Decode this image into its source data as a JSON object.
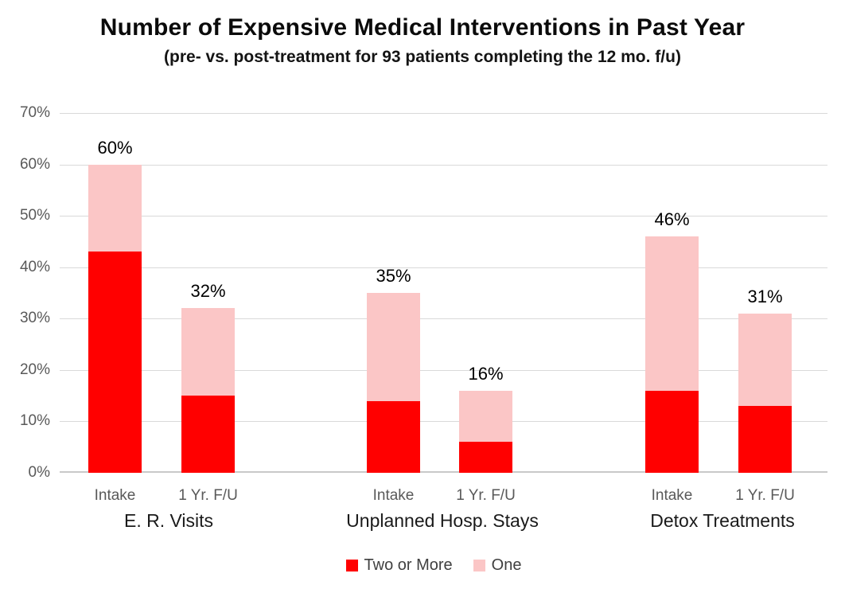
{
  "chart_data": {
    "type": "bar",
    "stacked": true,
    "title": "Number of Expensive Medical Interventions in Past Year",
    "subtitle": "(pre- vs. post-treatment for 93 patients completing the 12 mo. f/u)",
    "colors": {
      "two_or_more": "#ff0000",
      "one": "#fbc6c6"
    },
    "y_axis": {
      "min": 0,
      "max": 70,
      "tick_step": 10,
      "tick_labels": [
        "0%",
        "10%",
        "20%",
        "30%",
        "40%",
        "50%",
        "60%",
        "70%"
      ],
      "grid": true
    },
    "legend": {
      "position": "bottom",
      "entries": [
        {
          "label": "Two or More",
          "color": "#ff0000"
        },
        {
          "label": "One",
          "color": "#fbc6c6"
        }
      ]
    },
    "groups": [
      {
        "label": "E. R. Visits",
        "bars": [
          {
            "tick": "Intake",
            "total": 60,
            "total_label": "60%",
            "two_or_more": 43,
            "one": 17
          },
          {
            "tick": "1 Yr. F/U",
            "total": 32,
            "total_label": "32%",
            "two_or_more": 15,
            "one": 17
          }
        ]
      },
      {
        "label": "Unplanned Hosp. Stays",
        "bars": [
          {
            "tick": "Intake",
            "total": 35,
            "total_label": "35%",
            "two_or_more": 14,
            "one": 21
          },
          {
            "tick": "1 Yr. F/U",
            "total": 16,
            "total_label": "16%",
            "two_or_more": 6,
            "one": 10
          }
        ]
      },
      {
        "label": "Detox Treatments",
        "bars": [
          {
            "tick": "Intake",
            "total": 46,
            "total_label": "46%",
            "two_or_more": 16,
            "one": 30
          },
          {
            "tick": "1 Yr. F/U",
            "total": 31,
            "total_label": "31%",
            "two_or_more": 13,
            "one": 18
          }
        ]
      }
    ]
  }
}
